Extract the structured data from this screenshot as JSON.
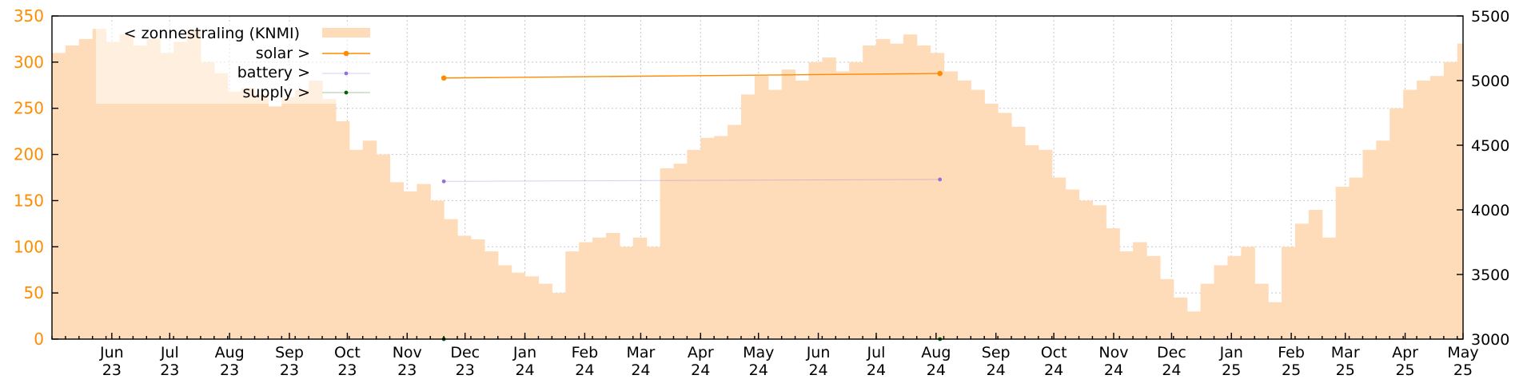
{
  "chart_data": {
    "type": "bar",
    "x_tick_labels": [
      {
        "month": "Jun",
        "year": "23"
      },
      {
        "month": "Jul",
        "year": "23"
      },
      {
        "month": "Aug",
        "year": "23"
      },
      {
        "month": "Sep",
        "year": "23"
      },
      {
        "month": "Oct",
        "year": "23"
      },
      {
        "month": "Nov",
        "year": "23"
      },
      {
        "month": "Dec",
        "year": "23"
      },
      {
        "month": "Jan",
        "year": "24"
      },
      {
        "month": "Feb",
        "year": "24"
      },
      {
        "month": "Mar",
        "year": "24"
      },
      {
        "month": "Apr",
        "year": "24"
      },
      {
        "month": "May",
        "year": "24"
      },
      {
        "month": "Jun",
        "year": "24"
      },
      {
        "month": "Jul",
        "year": "24"
      },
      {
        "month": "Aug",
        "year": "24"
      },
      {
        "month": "Sep",
        "year": "24"
      },
      {
        "month": "Oct",
        "year": "24"
      },
      {
        "month": "Nov",
        "year": "24"
      },
      {
        "month": "Dec",
        "year": "24"
      },
      {
        "month": "Jan",
        "year": "25"
      },
      {
        "month": "Feb",
        "year": "25"
      },
      {
        "month": "Mar",
        "year": "25"
      },
      {
        "month": "Apr",
        "year": "25"
      },
      {
        "month": "May",
        "year": "25"
      }
    ],
    "x_range": [
      "2023-05-01",
      "2025-05-01"
    ],
    "y_left": {
      "min": 0,
      "max": 350,
      "ticks": [
        "0",
        "50",
        "100",
        "150",
        "200",
        "250",
        "300",
        "350"
      ]
    },
    "y_right": {
      "min": 3000,
      "max": 5500,
      "ticks": [
        "3000",
        "3500",
        "4000",
        "4500",
        "5000",
        "5500"
      ]
    },
    "grid": true,
    "legend_position": "top-left",
    "series": [
      {
        "name": "< zonnestraling (KNMI)",
        "axis": "left",
        "style": "area",
        "color": "#ffdcb9",
        "x": [
          "2023-05-01",
          "2023-05-08",
          "2023-05-15",
          "2023-05-22",
          "2023-05-29",
          "2023-06-05",
          "2023-06-12",
          "2023-06-19",
          "2023-06-26",
          "2023-07-03",
          "2023-07-10",
          "2023-07-17",
          "2023-07-24",
          "2023-07-31",
          "2023-08-07",
          "2023-08-14",
          "2023-08-21",
          "2023-08-28",
          "2023-09-04",
          "2023-09-11",
          "2023-09-18",
          "2023-09-25",
          "2023-10-02",
          "2023-10-09",
          "2023-10-16",
          "2023-10-23",
          "2023-10-30",
          "2023-11-06",
          "2023-11-13",
          "2023-11-20",
          "2023-11-27",
          "2023-12-04",
          "2023-12-11",
          "2023-12-18",
          "2023-12-25",
          "2024-01-01",
          "2024-01-08",
          "2024-01-15",
          "2024-01-22",
          "2024-01-29",
          "2024-02-05",
          "2024-02-12",
          "2024-02-19",
          "2024-02-26",
          "2024-03-04",
          "2024-03-11",
          "2024-03-18",
          "2024-03-25",
          "2024-04-01",
          "2024-04-08",
          "2024-04-15",
          "2024-04-22",
          "2024-04-29",
          "2024-05-06",
          "2024-05-13",
          "2024-05-20",
          "2024-05-27",
          "2024-06-03",
          "2024-06-10",
          "2024-06-17",
          "2024-06-24",
          "2024-07-01",
          "2024-07-08",
          "2024-07-15",
          "2024-07-22",
          "2024-07-29",
          "2024-08-05",
          "2024-08-12",
          "2024-08-19",
          "2024-08-26",
          "2024-09-02",
          "2024-09-09",
          "2024-09-16",
          "2024-09-23",
          "2024-09-30",
          "2024-10-07",
          "2024-10-14",
          "2024-10-21",
          "2024-10-28",
          "2024-11-04",
          "2024-11-11",
          "2024-11-18",
          "2024-11-25",
          "2024-12-02",
          "2024-12-09",
          "2024-12-16",
          "2024-12-23",
          "2024-12-30",
          "2025-01-06",
          "2025-01-13",
          "2025-01-20",
          "2025-01-27",
          "2025-02-03",
          "2025-02-10",
          "2025-02-17",
          "2025-02-24",
          "2025-03-03",
          "2025-03-10",
          "2025-03-17",
          "2025-03-24",
          "2025-03-31",
          "2025-04-07",
          "2025-04-14",
          "2025-04-21",
          "2025-04-28"
        ],
        "values": [
          310,
          318,
          325,
          336,
          322,
          330,
          318,
          325,
          310,
          322,
          335,
          300,
          288,
          268,
          272,
          265,
          252,
          262,
          270,
          280,
          260,
          236,
          205,
          215,
          200,
          170,
          160,
          168,
          150,
          130,
          112,
          108,
          95,
          80,
          72,
          68,
          60,
          50,
          95,
          105,
          110,
          115,
          100,
          110,
          100,
          185,
          190,
          205,
          218,
          220,
          232,
          265,
          285,
          270,
          292,
          280,
          300,
          305,
          290,
          300,
          318,
          325,
          320,
          330,
          318,
          310,
          290,
          280,
          270,
          255,
          245,
          230,
          210,
          205,
          175,
          162,
          150,
          145,
          120,
          95,
          105,
          90,
          65,
          45,
          30,
          60,
          80,
          90,
          100,
          60,
          40,
          100,
          125,
          140,
          110,
          165,
          175,
          205,
          215,
          250,
          270,
          280,
          285,
          300,
          320
        ]
      },
      {
        "name": "solar >",
        "axis": "right",
        "style": "line-points",
        "color": "#ff8c00",
        "x": [
          "2023-11-20",
          "2024-08-03"
        ],
        "values": [
          5020,
          5055
        ]
      },
      {
        "name": "battery >",
        "axis": "right",
        "style": "line-points",
        "color": "#9370db",
        "x": [
          "2023-11-20",
          "2024-08-03"
        ],
        "values": [
          4220,
          4235
        ]
      },
      {
        "name": "supply >",
        "axis": "right",
        "style": "line-points",
        "color": "#006400",
        "x": [
          "2023-11-20",
          "2024-08-03"
        ],
        "values": [
          3000,
          3000
        ]
      }
    ]
  }
}
